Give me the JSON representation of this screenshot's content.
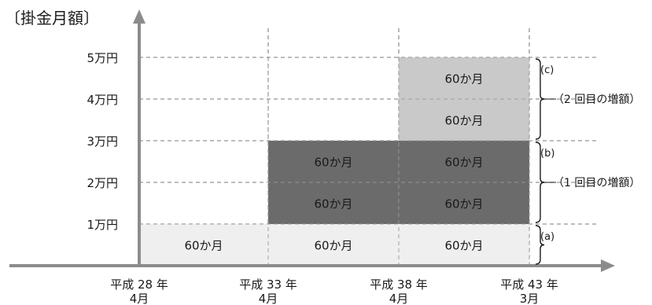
{
  "chart_data": {
    "type": "table",
    "title": "〔掛金月額〕",
    "y_ticks": [
      "1万円",
      "2万円",
      "3万円",
      "4万円",
      "5万円"
    ],
    "x_ticks": [
      {
        "line1": "平成 28 年",
        "line2": "4月"
      },
      {
        "line1": "平成 33 年",
        "line2": "4月"
      },
      {
        "line1": "平成 38 年",
        "line2": "4月"
      },
      {
        "line1": "平成 43 年",
        "line2": "3月"
      }
    ],
    "ylim": [
      0,
      5
    ],
    "cells": [
      {
        "col": 0,
        "y0": 0,
        "y1": 1,
        "label": "60か月",
        "fill": "#efefef",
        "text_color": "#1a1a1a"
      },
      {
        "col": 1,
        "y0": 0,
        "y1": 1,
        "label": "60か月",
        "fill": "#efefef",
        "text_color": "#1a1a1a"
      },
      {
        "col": 2,
        "y0": 0,
        "y1": 1,
        "label": "60か月",
        "fill": "#efefef",
        "text_color": "#1a1a1a"
      },
      {
        "col": 1,
        "y0": 1,
        "y1": 2,
        "label": "60か月",
        "fill": "#6b6b6b",
        "text_color": "#ffffff"
      },
      {
        "col": 1,
        "y0": 2,
        "y1": 3,
        "label": "60か月",
        "fill": "#6b6b6b",
        "text_color": "#ffffff"
      },
      {
        "col": 2,
        "y0": 1,
        "y1": 2,
        "label": "60か月",
        "fill": "#6b6b6b",
        "text_color": "#ffffff"
      },
      {
        "col": 2,
        "y0": 2,
        "y1": 3,
        "label": "60か月",
        "fill": "#6b6b6b",
        "text_color": "#ffffff"
      },
      {
        "col": 2,
        "y0": 3,
        "y1": 4,
        "label": "60か月",
        "fill": "#c9c9c9",
        "text_color": "#1a1a1a"
      },
      {
        "col": 2,
        "y0": 4,
        "y1": 5,
        "label": "60か月",
        "fill": "#c9c9c9",
        "text_color": "#1a1a1a"
      }
    ],
    "annotations": [
      {
        "id": "a",
        "label": "(a)",
        "desc": "",
        "y0": 0,
        "y1": 1
      },
      {
        "id": "b",
        "label": "(b)",
        "desc": "（1 回目の増額）",
        "y0": 1,
        "y1": 3
      },
      {
        "id": "c",
        "label": "(c)",
        "desc": "（2 回目の増額）",
        "y0": 3,
        "y1": 5
      }
    ],
    "grid": true
  }
}
